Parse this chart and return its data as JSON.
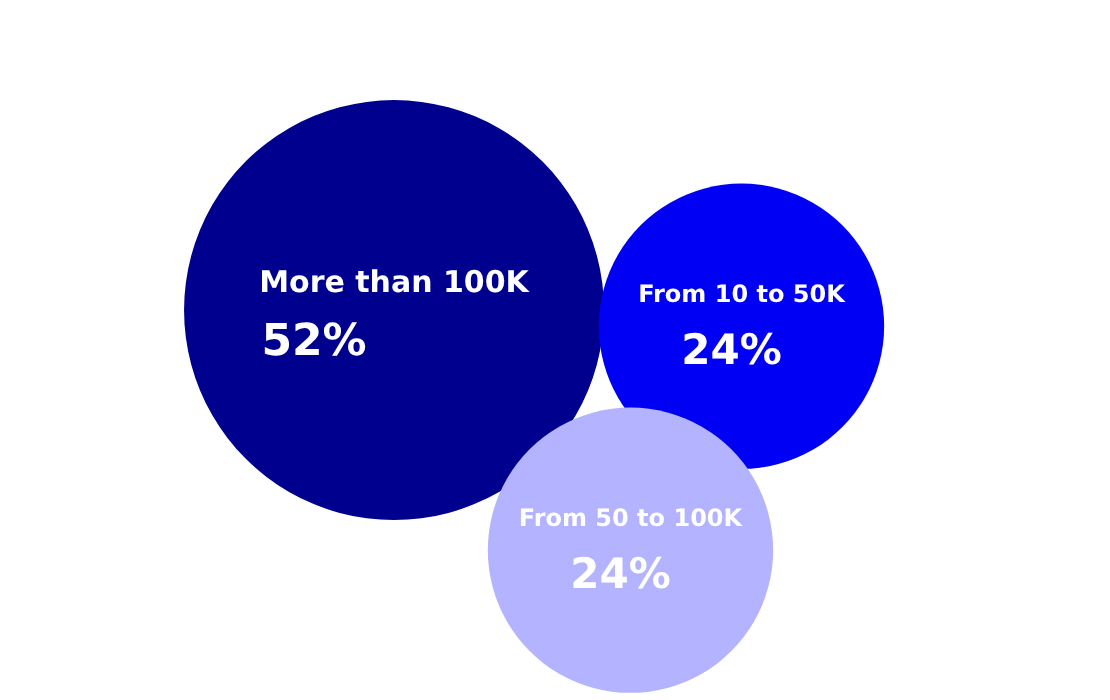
{
  "chart_data": {
    "type": "other",
    "categories": [
      "More than 100K",
      "From 10 to 50K",
      "From 50 to 100K"
    ],
    "values": [
      52,
      24,
      24
    ],
    "value_labels": [
      "52%",
      "24%",
      "24%"
    ],
    "colors": [
      "#00008f",
      "#0000f5",
      "#b3b3ff"
    ]
  }
}
